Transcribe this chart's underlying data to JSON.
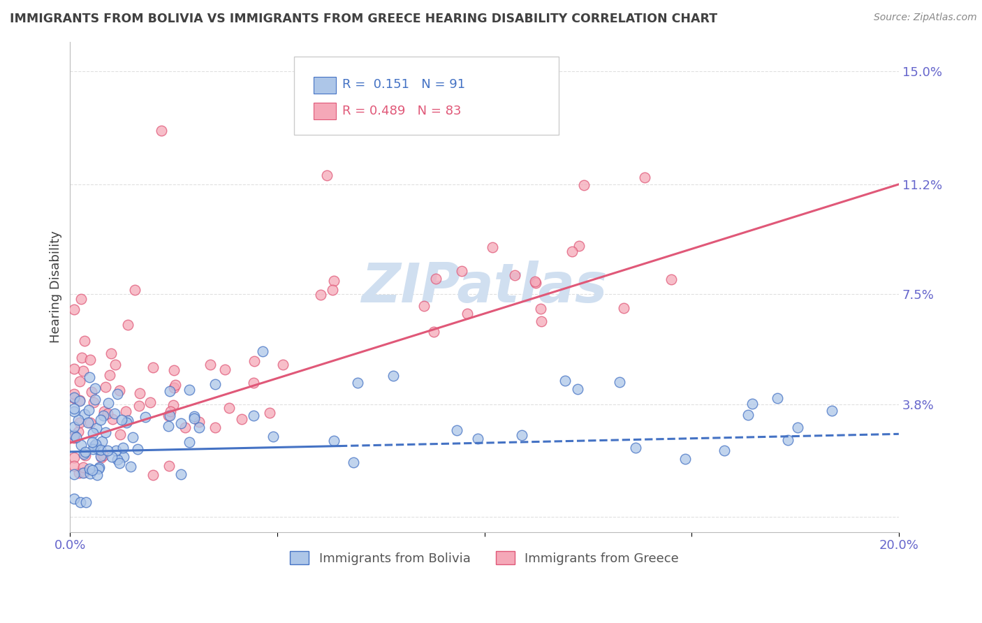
{
  "title": "IMMIGRANTS FROM BOLIVIA VS IMMIGRANTS FROM GREECE HEARING DISABILITY CORRELATION CHART",
  "source": "Source: ZipAtlas.com",
  "ylabel": "Hearing Disability",
  "xlim": [
    0.0,
    0.2
  ],
  "ylim": [
    -0.005,
    0.16
  ],
  "yticks": [
    0.0,
    0.038,
    0.075,
    0.112,
    0.15
  ],
  "ytick_labels": [
    "",
    "3.8%",
    "7.5%",
    "11.2%",
    "15.0%"
  ],
  "xticks": [
    0.0,
    0.05,
    0.1,
    0.15,
    0.2
  ],
  "xtick_labels": [
    "0.0%",
    "",
    "",
    "",
    "20.0%"
  ],
  "bolivia_R": 0.151,
  "bolivia_N": 91,
  "greece_R": 0.489,
  "greece_N": 83,
  "bolivia_color": "#adc6e8",
  "greece_color": "#f5a8b8",
  "bolivia_line_color": "#4472c4",
  "greece_line_color": "#e05878",
  "watermark": "ZIPatlas",
  "watermark_color": "#d0dff0",
  "background_color": "#ffffff",
  "grid_color": "#cccccc",
  "title_color": "#404040",
  "tick_color": "#6666cc",
  "greece_line_start_y": 0.025,
  "greece_line_end_y": 0.112,
  "bolivia_line_start_y": 0.022,
  "bolivia_line_end_y": 0.028
}
